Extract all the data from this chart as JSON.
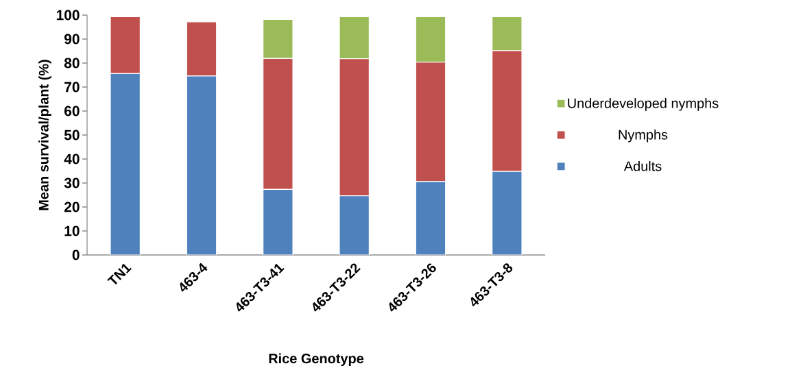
{
  "chart_data": {
    "type": "bar",
    "stacked": true,
    "xlabel": "Rice Genotype",
    "ylabel": "Mean survival/plant (%)",
    "categories": [
      "TN1",
      "463-4",
      "463-T3-41",
      "463-T3-22",
      "463-T3-26",
      "463-T3-8"
    ],
    "series": [
      {
        "name": "Adults",
        "color": "#4f81bd",
        "values": [
          75.6,
          74.6,
          27.3,
          24.7,
          30.6,
          34.8
        ]
      },
      {
        "name": "Nymphs",
        "color": "#c0504d",
        "values": [
          23.7,
          22.6,
          54.6,
          57.1,
          49.8,
          50.4
        ]
      },
      {
        "name": "Underdeveloped nymphs",
        "color": "#9bbb59",
        "values": [
          null,
          null,
          16.3,
          17.5,
          18.9,
          14.1
        ]
      }
    ],
    "ylim": [
      0,
      100
    ],
    "yticks": [
      0,
      10,
      20,
      30,
      40,
      50,
      60,
      70,
      80,
      90,
      100
    ],
    "legend": "right",
    "grid": false
  }
}
